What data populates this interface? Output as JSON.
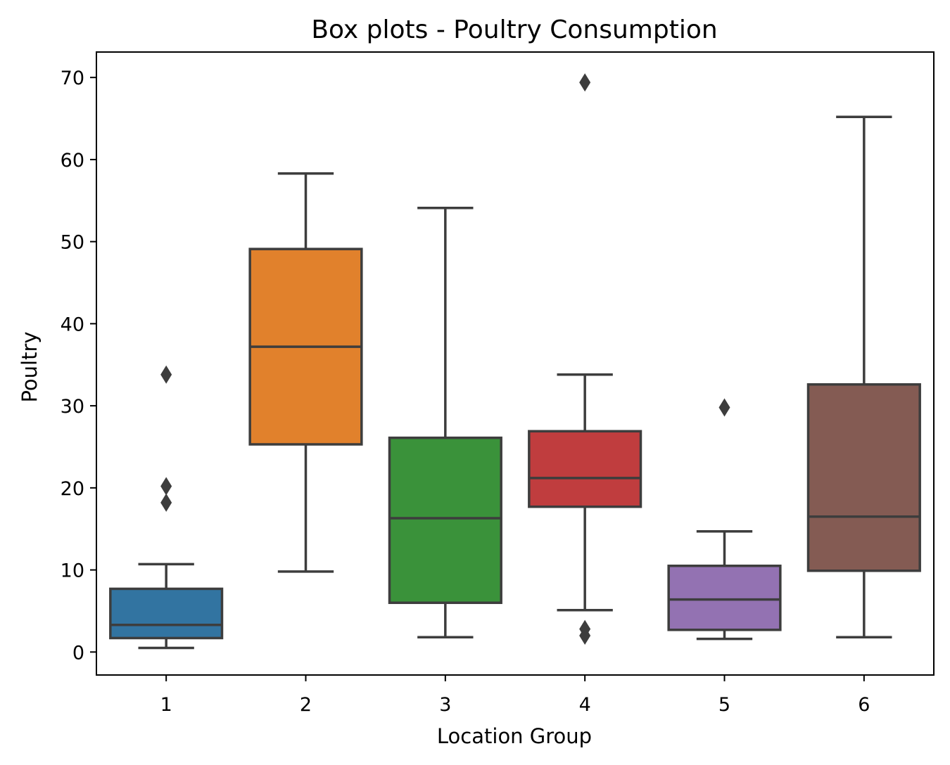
{
  "chart_data": {
    "type": "box",
    "title": "Box plots - Poultry Consumption",
    "xlabel": "Location Group",
    "ylabel": "Poultry",
    "ylim": [
      -2.8,
      73.1
    ],
    "yticks": [
      0,
      10,
      20,
      30,
      40,
      50,
      60,
      70
    ],
    "grid": false,
    "legend": "none",
    "boxes": [
      {
        "category": "1",
        "whisker_low": 0.5,
        "q1": 1.7,
        "median": 3.3,
        "q3": 7.7,
        "whisker_high": 10.7,
        "outliers": [
          18.2,
          20.2,
          33.8
        ],
        "color": "#3274a1"
      },
      {
        "category": "2",
        "whisker_low": 9.8,
        "q1": 25.3,
        "median": 37.2,
        "q3": 49.1,
        "whisker_high": 58.3,
        "outliers": [],
        "color": "#e1812c"
      },
      {
        "category": "3",
        "whisker_low": 1.8,
        "q1": 6.0,
        "median": 16.3,
        "q3": 26.1,
        "whisker_high": 54.1,
        "outliers": [],
        "color": "#3a923a"
      },
      {
        "category": "4",
        "whisker_low": 5.1,
        "q1": 17.7,
        "median": 21.2,
        "q3": 26.9,
        "whisker_high": 33.8,
        "outliers": [
          2.0,
          2.8,
          69.4
        ],
        "color": "#c03d3e"
      },
      {
        "category": "5",
        "whisker_low": 1.6,
        "q1": 2.7,
        "median": 6.4,
        "q3": 10.5,
        "whisker_high": 14.7,
        "outliers": [
          29.8
        ],
        "color": "#9372b2"
      },
      {
        "category": "6",
        "whisker_low": 1.8,
        "q1": 9.9,
        "median": 16.5,
        "q3": 32.6,
        "whisker_high": 65.2,
        "outliers": [],
        "color": "#845b53"
      }
    ],
    "line_color": "#3d3d3d"
  }
}
